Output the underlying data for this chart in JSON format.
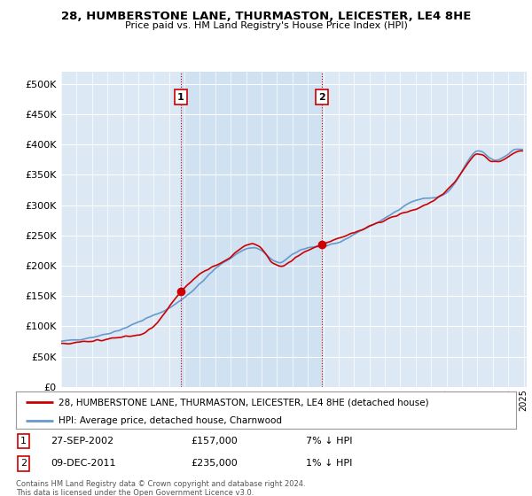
{
  "title": "28, HUMBERSTONE LANE, THURMASTON, LEICESTER, LE4 8HE",
  "subtitle": "Price paid vs. HM Land Registry's House Price Index (HPI)",
  "background_color": "#dce9f5",
  "ylim": [
    0,
    520000
  ],
  "yticks": [
    0,
    50000,
    100000,
    150000,
    200000,
    250000,
    300000,
    350000,
    400000,
    450000,
    500000
  ],
  "legend_entries": [
    "28, HUMBERSTONE LANE, THURMASTON, LEICESTER, LE4 8HE (detached house)",
    "HPI: Average price, detached house, Charnwood"
  ],
  "annotations": [
    {
      "id": 1,
      "date": "27-SEP-2002",
      "price": "£157,000",
      "pct": "7% ↓ HPI"
    },
    {
      "id": 2,
      "date": "09-DEC-2011",
      "price": "£235,000",
      "pct": "1% ↓ HPI"
    }
  ],
  "note": "Contains HM Land Registry data © Crown copyright and database right 2024.\nThis data is licensed under the Open Government Licence v3.0.",
  "hpi_line_color": "#6699cc",
  "sale_line_color": "#cc0000",
  "vline_color": "#cc0000",
  "grid_color": "#ffffff",
  "shade_color": "#c8ddf0",
  "sale1_x": 2002.75,
  "sale1_y": 157000,
  "sale2_x": 2011.92,
  "sale2_y": 235000,
  "xmin": 1995,
  "xmax": 2025
}
